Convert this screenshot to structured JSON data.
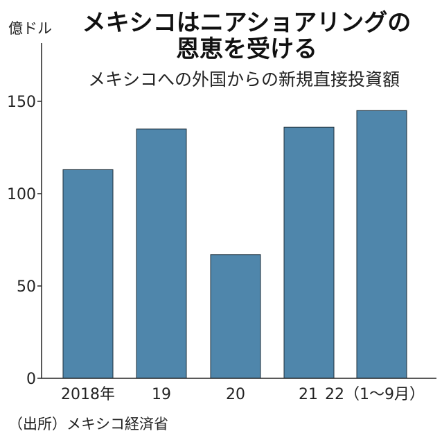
{
  "chart_data": {
    "type": "bar",
    "title_lines": [
      "メキシコはニアショアリングの",
      "恩恵を受ける"
    ],
    "subtitle": "メキシコへの外国からの新規直接投資額",
    "unit": "億ドル",
    "categories": [
      "2018年",
      "19",
      "20",
      "21",
      "22（1〜9月）"
    ],
    "values": [
      113,
      135,
      67,
      136,
      145
    ],
    "ylim": [
      0,
      180
    ],
    "yticks": [
      0,
      50,
      100,
      150
    ],
    "bar_color": "#4f86ab",
    "grid": false,
    "legend": "none",
    "source": "（出所）メキシコ経済省"
  }
}
